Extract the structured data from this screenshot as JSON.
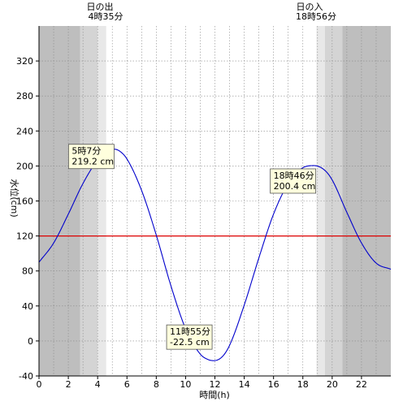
{
  "chart_data": {
    "type": "line",
    "xlabel": "時間(h)",
    "ylabel": "水位(cm)",
    "xlim": [
      0,
      24
    ],
    "ylim": [
      -40,
      360
    ],
    "x_ticks": [
      0,
      2,
      4,
      6,
      8,
      10,
      12,
      14,
      16,
      18,
      20,
      22
    ],
    "y_ticks": [
      -40,
      0,
      40,
      80,
      120,
      160,
      200,
      240,
      280,
      320
    ],
    "grid": true,
    "sunrise": {
      "label": "日の出",
      "time": "4時35分",
      "hour": 4.583
    },
    "sunset": {
      "label": "日の入",
      "time": "18時56分",
      "hour": 18.933
    },
    "twilight_bands": [
      {
        "kind": "night",
        "from": 0,
        "to": 2.8,
        "color": "#bebebe"
      },
      {
        "kind": "twilight",
        "from": 2.8,
        "to": 4.0,
        "color": "#d4d4d4"
      },
      {
        "kind": "dawn",
        "from": 4.0,
        "to": 4.583,
        "color": "#e8e8e8"
      },
      {
        "kind": "dusk",
        "from": 18.933,
        "to": 19.5,
        "color": "#e8e8e8"
      },
      {
        "kind": "twilight",
        "from": 19.5,
        "to": 20.7,
        "color": "#d4d4d4"
      },
      {
        "kind": "night",
        "from": 20.7,
        "to": 24,
        "color": "#bebebe"
      }
    ],
    "series": [
      {
        "color": "#0000cc",
        "x": [
          0,
          1,
          2,
          3,
          4,
          4.5,
          5.12,
          5.5,
          6,
          7,
          8,
          9,
          10,
          11,
          11.5,
          11.92,
          12.5,
          13,
          14,
          15,
          16,
          17,
          18,
          18.77,
          19.5,
          20,
          21,
          22,
          23,
          24
        ],
        "y": [
          90,
          112,
          145,
          180,
          207,
          215,
          219.2,
          217,
          208,
          172,
          121,
          63,
          14,
          -15,
          -21,
          -22.5,
          -18,
          -5,
          41,
          95,
          145,
          180,
          198,
          200.4,
          195,
          184,
          147,
          112,
          89,
          82
        ]
      }
    ],
    "reference_line": {
      "y": 120,
      "color": "#dd0000"
    },
    "annotations": [
      {
        "kind": "high",
        "time": "5時7分",
        "value": "219.2 cm",
        "x": 5.12,
        "y": 219.2
      },
      {
        "kind": "low",
        "time": "11時55分",
        "value": "-22.5 cm",
        "x": 11.92,
        "y": -22.5
      },
      {
        "kind": "high",
        "time": "18時46分",
        "value": "200.4 cm",
        "x": 18.77,
        "y": 200.4
      }
    ],
    "colors": {
      "grid": "#8a8a8a",
      "axis": "#000000",
      "callout_fill": "#ffffdd",
      "callout_border": "#555555"
    }
  }
}
